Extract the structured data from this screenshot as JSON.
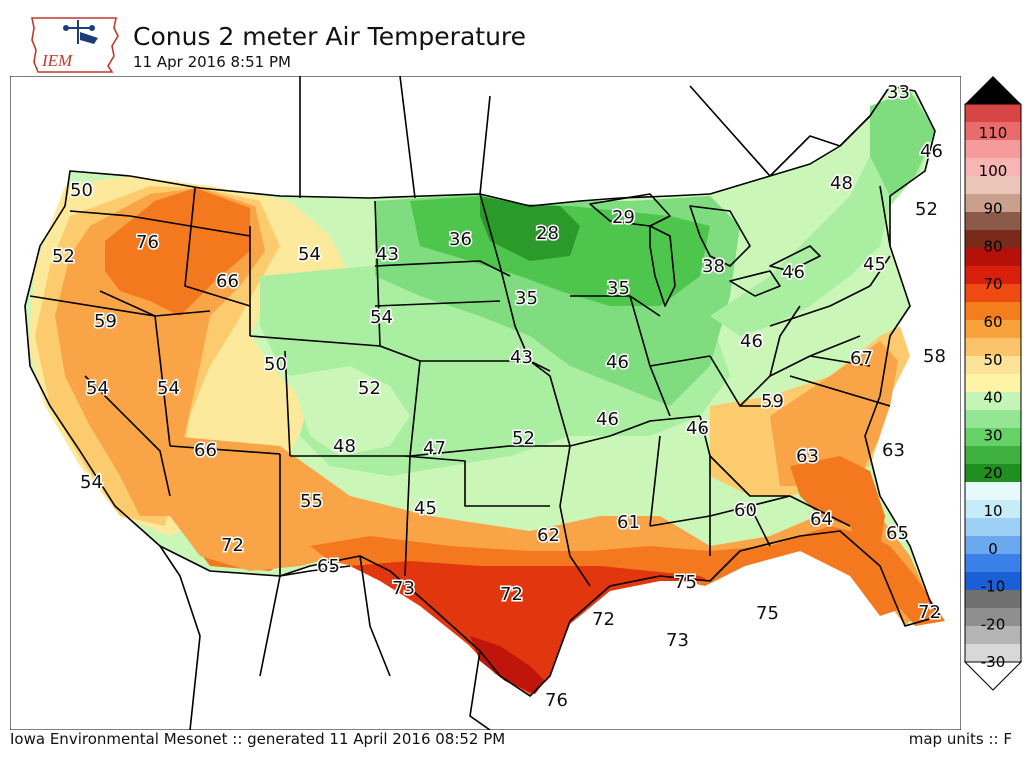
{
  "header": {
    "logo_text": "IEM",
    "title": "Conus 2 meter Air Temperature",
    "subtitle": "11 Apr 2016 8:51 PM"
  },
  "footer": {
    "left": "Iowa Environmental Mesonet :: generated 11 April 2016 08:52 PM",
    "right": "map units :: F"
  },
  "colorbar": {
    "ticks": [
      "110",
      "100",
      "90",
      "80",
      "70",
      "60",
      "50",
      "40",
      "30",
      "20",
      "10",
      "0",
      "-10",
      "-20",
      "-30"
    ],
    "colors": [
      "#d8d8d8",
      "#b5b5b5",
      "#8f8f8f",
      "#707070",
      "#1a5fd6",
      "#3b80e8",
      "#6aa8f0",
      "#9ed0f5",
      "#c6ecf7",
      "#e6fafd",
      "#1f8f1f",
      "#3fb13f",
      "#66d166",
      "#94e594",
      "#c4f5b6",
      "#fef4a8",
      "#fde39a",
      "#fcc46a",
      "#f8a23c",
      "#f47d1c",
      "#ee4a12",
      "#d8200c",
      "#b5110a",
      "#7a2a18",
      "#8b5a48",
      "#c9a08d",
      "#e9c6b8",
      "#f8b5b5",
      "#f69b9b",
      "#ea6b6b",
      "#d84545"
    ],
    "colors_note": ""
  },
  "map": {
    "colors": {
      "c30": "#2a9a2a",
      "c35": "#4ec64e",
      "c40": "#7fdc7f",
      "c45": "#a9eea1",
      "c50": "#caf6b8",
      "c55": "#fde99c",
      "c60": "#fccb6e",
      "c65": "#f9a447",
      "c70": "#f3781e",
      "c75": "#e2360f",
      "c80": "#c0150a"
    },
    "labels": [
      {
        "t": "50"
      },
      {
        "t": "76"
      },
      {
        "t": "66"
      },
      {
        "t": "54"
      },
      {
        "t": "43"
      },
      {
        "t": "36"
      },
      {
        "t": "28"
      },
      {
        "t": "29"
      },
      {
        "t": "33"
      },
      {
        "t": "46"
      },
      {
        "t": "48"
      },
      {
        "t": "52"
      },
      {
        "t": "52"
      },
      {
        "t": "59"
      },
      {
        "t": "54"
      },
      {
        "t": "35"
      },
      {
        "t": "35"
      },
      {
        "t": "38"
      },
      {
        "t": "46"
      },
      {
        "t": "45"
      },
      {
        "t": "50"
      },
      {
        "t": "43"
      },
      {
        "t": "46"
      },
      {
        "t": "46"
      },
      {
        "t": "54"
      },
      {
        "t": "54"
      },
      {
        "t": "52"
      },
      {
        "t": "67"
      },
      {
        "t": "58"
      },
      {
        "t": "59"
      },
      {
        "t": "46"
      },
      {
        "t": "46"
      },
      {
        "t": "66"
      },
      {
        "t": "48"
      },
      {
        "t": "47"
      },
      {
        "t": "52"
      },
      {
        "t": "63"
      },
      {
        "t": "63"
      },
      {
        "t": "54"
      },
      {
        "t": "55"
      },
      {
        "t": "45"
      },
      {
        "t": "62"
      },
      {
        "t": "61"
      },
      {
        "t": "60"
      },
      {
        "t": "64"
      },
      {
        "t": "65"
      },
      {
        "t": "72"
      },
      {
        "t": "65"
      },
      {
        "t": "73"
      },
      {
        "t": "72"
      },
      {
        "t": "75"
      },
      {
        "t": "75"
      },
      {
        "t": "72"
      },
      {
        "t": "73"
      },
      {
        "t": "72"
      },
      {
        "t": "76"
      }
    ]
  }
}
